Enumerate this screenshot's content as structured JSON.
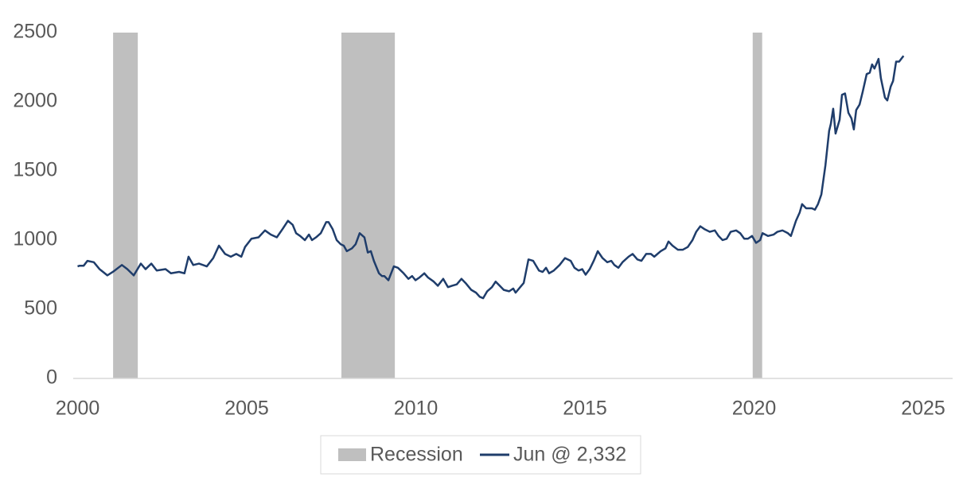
{
  "chart_data": {
    "type": "line",
    "xlim": [
      2000,
      2025
    ],
    "xticks": [
      2000,
      2005,
      2010,
      2015,
      2020,
      2025
    ],
    "ylim": [
      0,
      2500
    ],
    "yticks": [
      0,
      500,
      1000,
      1500,
      2000,
      2500
    ],
    "recessions": {
      "name": "Recession",
      "color": "#bfbfbf",
      "ranges": [
        [
          2001.05,
          2001.78
        ],
        [
          2007.8,
          2009.38
        ],
        [
          2019.96,
          2020.24
        ]
      ]
    },
    "series": [
      {
        "name": "Jun @ 2,332",
        "color": "#1f3d6b",
        "x": [
          2000.0,
          2000.06,
          2000.18,
          2000.29,
          2000.48,
          2000.65,
          2000.88,
          2001.07,
          2001.31,
          2001.47,
          2001.66,
          2001.87,
          2002.01,
          2002.18,
          2002.34,
          2002.6,
          2002.76,
          2003.0,
          2003.16,
          2003.28,
          2003.42,
          2003.59,
          2003.82,
          2004.01,
          2004.18,
          2004.36,
          2004.53,
          2004.69,
          2004.84,
          2004.95,
          2005.14,
          2005.35,
          2005.54,
          2005.71,
          2005.89,
          2006.06,
          2006.22,
          2006.36,
          2006.46,
          2006.58,
          2006.72,
          2006.84,
          2006.93,
          2007.05,
          2007.19,
          2007.35,
          2007.42,
          2007.54,
          2007.66,
          2007.78,
          2007.87,
          2007.96,
          2008.11,
          2008.22,
          2008.34,
          2008.48,
          2008.58,
          2008.67,
          2008.76,
          2008.91,
          2009.0,
          2009.07,
          2009.19,
          2009.35,
          2009.47,
          2009.64,
          2009.78,
          2009.89,
          2009.99,
          2010.11,
          2010.25,
          2010.36,
          2010.53,
          2010.65,
          2010.81,
          2010.95,
          2011.07,
          2011.21,
          2011.35,
          2011.47,
          2011.64,
          2011.78,
          2011.89,
          2011.99,
          2012.11,
          2012.25,
          2012.36,
          2012.48,
          2012.6,
          2012.76,
          2012.88,
          2012.95,
          2013.12,
          2013.19,
          2013.33,
          2013.47,
          2013.64,
          2013.75,
          2013.85,
          2013.94,
          2014.08,
          2014.25,
          2014.41,
          2014.58,
          2014.69,
          2014.81,
          2014.92,
          2015.02,
          2015.14,
          2015.26,
          2015.38,
          2015.52,
          2015.66,
          2015.78,
          2015.87,
          2015.99,
          2016.11,
          2016.29,
          2016.41,
          2016.55,
          2016.67,
          2016.81,
          2016.95,
          2017.05,
          2017.24,
          2017.38,
          2017.47,
          2017.59,
          2017.75,
          2017.89,
          2018.04,
          2018.18,
          2018.29,
          2018.41,
          2018.53,
          2018.69,
          2018.84,
          2018.95,
          2019.07,
          2019.19,
          2019.31,
          2019.47,
          2019.59,
          2019.71,
          2019.82,
          2019.94,
          2020.06,
          2020.18,
          2020.25,
          2020.41,
          2020.58,
          2020.69,
          2020.84,
          2021.0,
          2021.09,
          2021.24,
          2021.35,
          2021.42,
          2021.54,
          2021.71,
          2021.8,
          2021.89,
          2021.99,
          2022.11,
          2022.22,
          2022.27,
          2022.34,
          2022.41,
          2022.53,
          2022.6,
          2022.69,
          2022.79,
          2022.88,
          2022.95,
          2023.02,
          2023.12,
          2023.21,
          2023.33,
          2023.42,
          2023.49,
          2023.56,
          2023.68,
          2023.75,
          2023.87,
          2023.94,
          2024.04,
          2024.11,
          2024.2,
          2024.29,
          2024.42
        ],
        "values": [
          810,
          815,
          815,
          850,
          840,
          790,
          745,
          775,
          820,
          790,
          745,
          830,
          790,
          830,
          780,
          790,
          760,
          770,
          760,
          880,
          820,
          830,
          810,
          870,
          960,
          900,
          880,
          900,
          880,
          950,
          1010,
          1020,
          1070,
          1040,
          1020,
          1080,
          1140,
          1110,
          1050,
          1030,
          1000,
          1040,
          1000,
          1020,
          1050,
          1130,
          1130,
          1080,
          1000,
          970,
          960,
          920,
          940,
          970,
          1050,
          1020,
          910,
          920,
          850,
          760,
          740,
          740,
          710,
          810,
          800,
          760,
          720,
          740,
          710,
          730,
          760,
          730,
          700,
          670,
          720,
          660,
          670,
          680,
          720,
          690,
          640,
          620,
          590,
          580,
          630,
          660,
          700,
          670,
          640,
          630,
          650,
          620,
          670,
          690,
          860,
          850,
          780,
          770,
          800,
          760,
          780,
          820,
          870,
          850,
          800,
          780,
          790,
          750,
          790,
          850,
          920,
          870,
          840,
          850,
          820,
          800,
          840,
          880,
          900,
          860,
          850,
          900,
          900,
          880,
          920,
          940,
          990,
          960,
          930,
          930,
          950,
          1000,
          1060,
          1100,
          1080,
          1060,
          1070,
          1030,
          1000,
          1010,
          1060,
          1070,
          1050,
          1010,
          1010,
          1030,
          980,
          1000,
          1050,
          1030,
          1040,
          1060,
          1070,
          1050,
          1030,
          1140,
          1200,
          1260,
          1230,
          1230,
          1220,
          1260,
          1330,
          1540,
          1790,
          1840,
          1950,
          1770,
          1870,
          2050,
          2060,
          1920,
          1880,
          1800,
          1940,
          1980,
          2070,
          2200,
          2210,
          2270,
          2240,
          2310,
          2170,
          2030,
          2010,
          2110,
          2150,
          2290,
          2290,
          2332
        ]
      }
    ]
  }
}
